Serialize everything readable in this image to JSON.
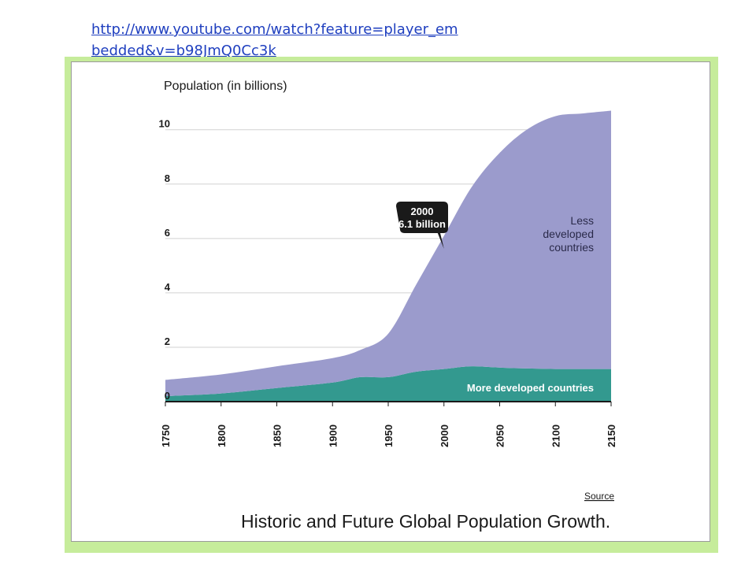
{
  "link": {
    "text": "http://www.youtube.com/watch?feature=player_embedded&v=b98JmQ0Cc3k"
  },
  "chart_data": {
    "type": "area",
    "stacked": true,
    "title": "Historic and Future Global Population Growth.",
    "ylabel": "Population (in billions)",
    "xlabel": "",
    "xlim": [
      1750,
      2150
    ],
    "ylim": [
      0,
      10.6
    ],
    "grid": true,
    "x_ticks": [
      "1750",
      "1800",
      "1850",
      "1900",
      "1950",
      "2000",
      "2050",
      "2100",
      "2150"
    ],
    "y_ticks": [
      "0",
      "2",
      "4",
      "6",
      "8",
      "10"
    ],
    "x": [
      1750,
      1800,
      1850,
      1900,
      1925,
      1950,
      1975,
      2000,
      2025,
      2050,
      2075,
      2100,
      2125,
      2150
    ],
    "series": [
      {
        "name": "More developed countries",
        "color": "#33998f",
        "values": [
          0.2,
          0.3,
          0.5,
          0.7,
          0.9,
          0.9,
          1.1,
          1.2,
          1.3,
          1.25,
          1.22,
          1.2,
          1.2,
          1.2
        ]
      },
      {
        "name": "Less developed countries",
        "color": "#9b9bcc",
        "values": [
          0.6,
          0.7,
          0.8,
          0.9,
          1.0,
          1.6,
          3.2,
          4.9,
          6.6,
          7.9,
          8.8,
          9.3,
          9.4,
          9.5
        ]
      }
    ],
    "area_labels": {
      "less": [
        "Less",
        "developed",
        "countries"
      ],
      "more": "More developed countries"
    },
    "annotation": {
      "year": "2000",
      "text": "6.1 billion"
    },
    "source_label": "Source"
  }
}
